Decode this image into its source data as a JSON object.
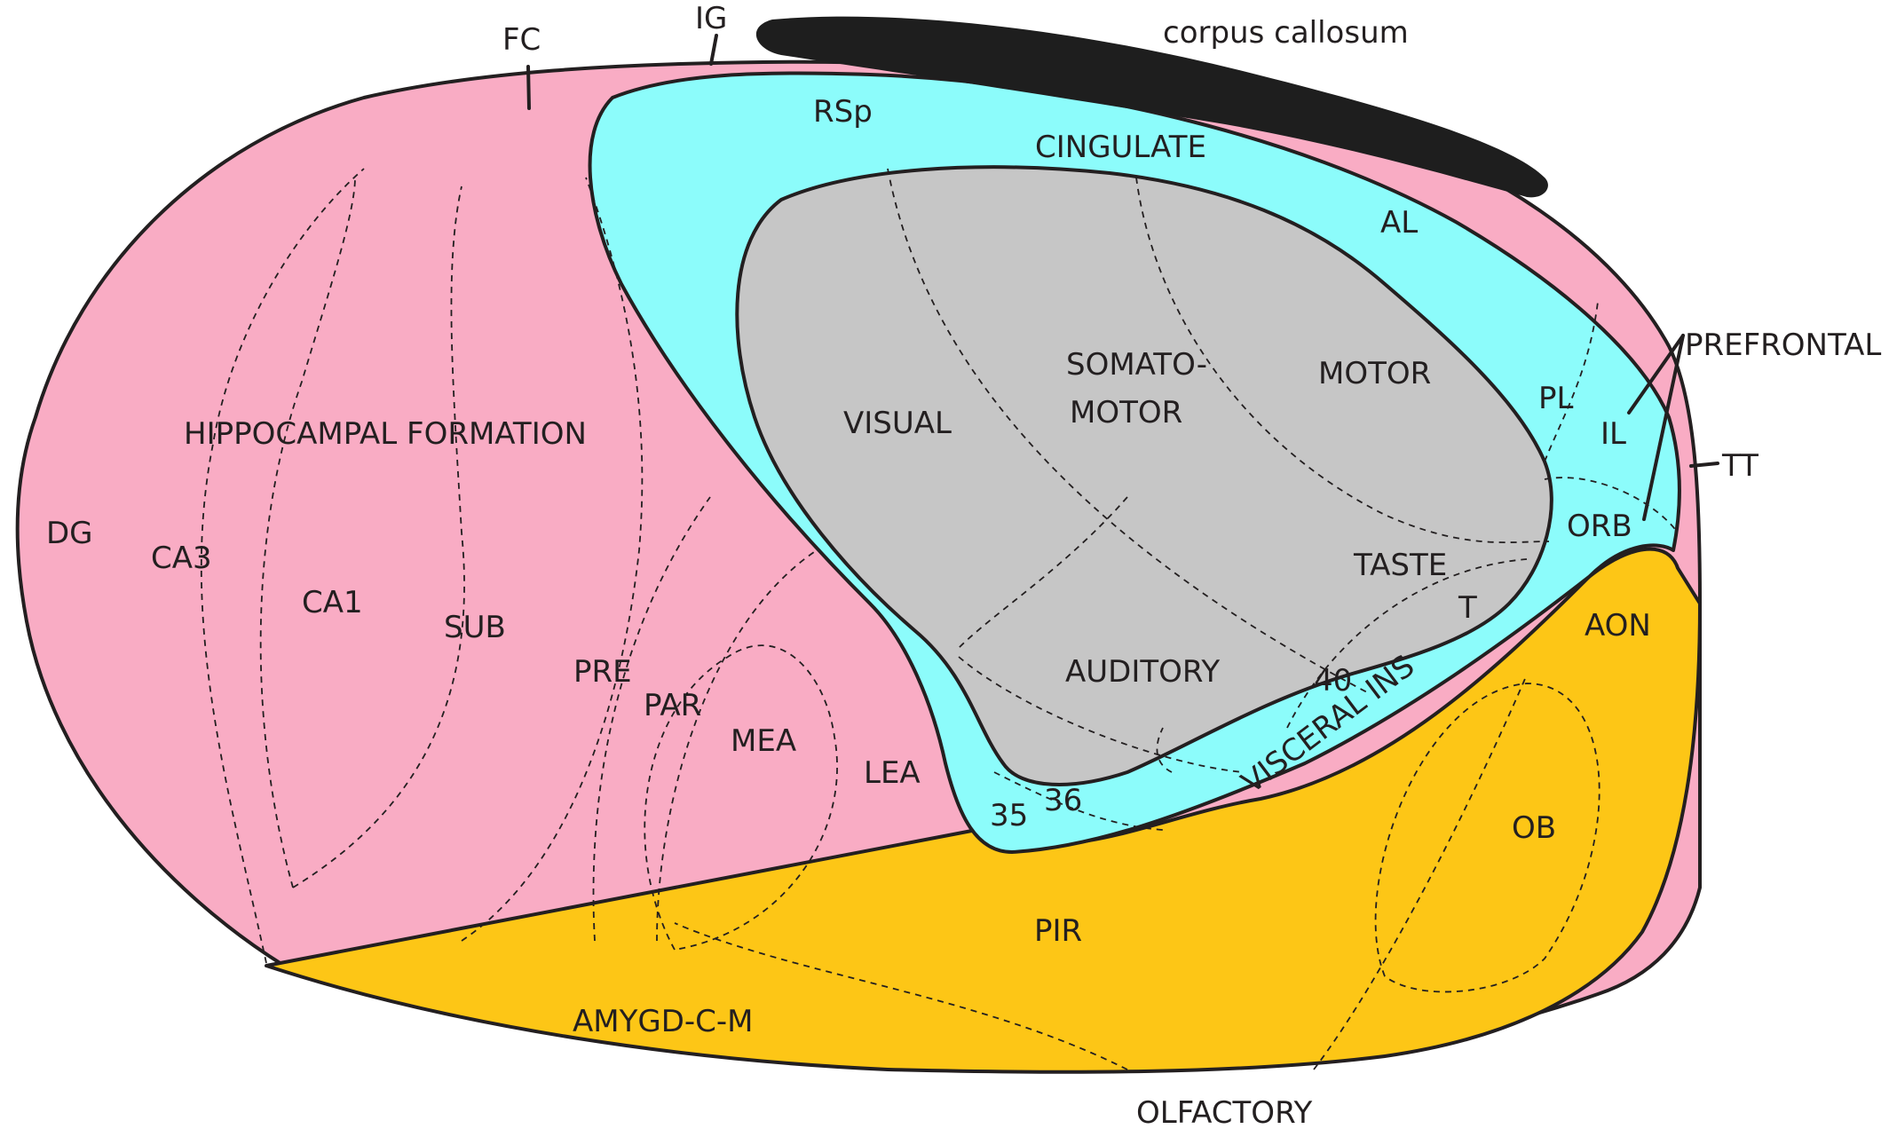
{
  "colors": {
    "hippocampal": "#f9acc4",
    "cortex_outer": "#8cfcfb",
    "isocortex_core": "#c6c6c6",
    "olfactory": "#fdc616",
    "callosum": "#1e1e1e",
    "line": "#231f20"
  },
  "labels": {
    "fc": "FC",
    "ig": "IG",
    "corpus_callosum": "corpus callosum",
    "rsp": "RSp",
    "cingulate": "CINGULATE",
    "al": "AL",
    "prefrontal": "PREFRONTAL",
    "pl": "PL",
    "il": "IL",
    "tt": "TT",
    "orb": "ORB",
    "motor": "MOTOR",
    "somatomotor_1": "SOMATO-",
    "somatomotor_2": "MOTOR",
    "visual": "VISUAL",
    "taste": "TASTE",
    "t": "T",
    "auditory": "AUDITORY",
    "a40": "40",
    "visceral_ins": "VISCERAL INS",
    "a35": "35",
    "a36": "36",
    "hippocampal_formation": "HIPPOCAMPAL FORMATION",
    "dg": "DG",
    "ca3": "CA3",
    "ca1": "CA1",
    "sub": "SUB",
    "pre": "PRE",
    "par": "PAR",
    "mea": "MEA",
    "lea": "LEA",
    "aon": "AON",
    "ob": "OB",
    "pir": "PIR",
    "amygd": "AMYGD-C-M",
    "olfactory": "OLFACTORY"
  }
}
